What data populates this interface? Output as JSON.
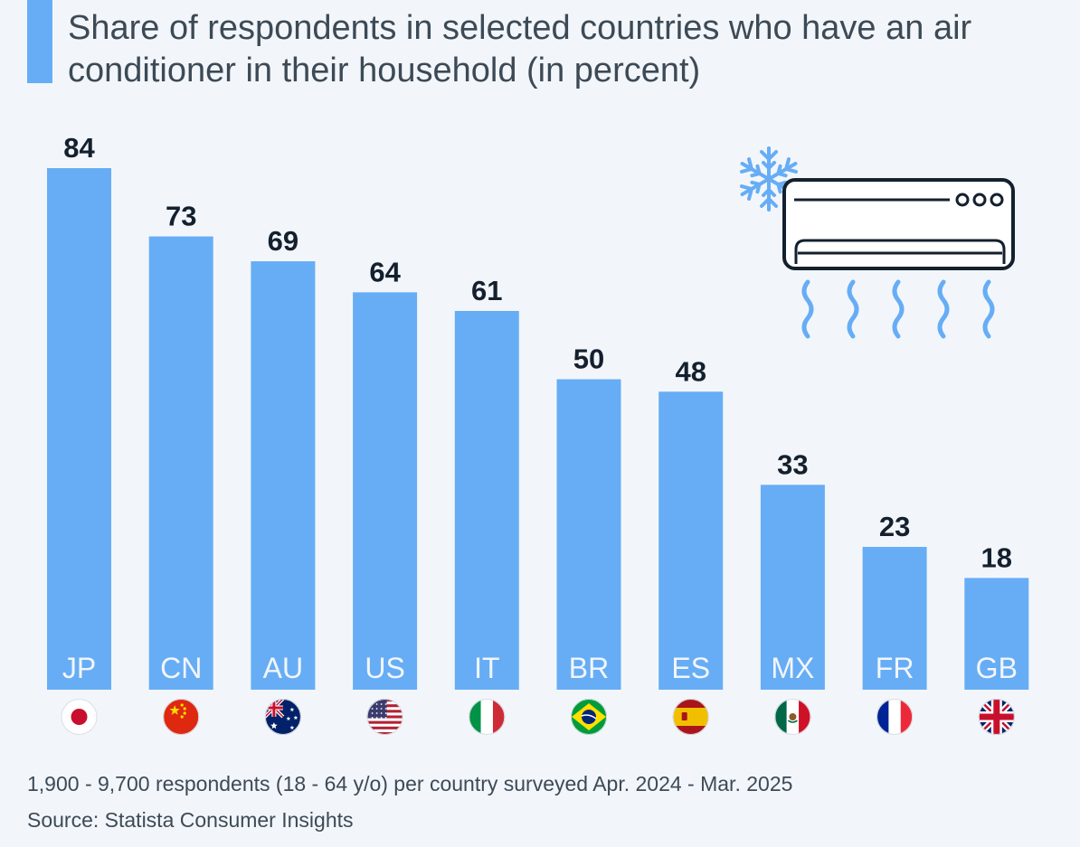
{
  "title": "Share of respondents in selected countries who have an air conditioner in their household (in percent)",
  "footnote": "1,900 - 9,700 respondents (18 - 64 y/o) per country surveyed Apr. 2024 - Mar. 2025",
  "source": "Source: Statista Consumer Insights",
  "colors": {
    "bar": "#67adf5",
    "value_text": "#14202e",
    "category_text": "#f2f6fa",
    "illustration_stroke": "#14202e",
    "illustration_accent": "#67adf5"
  },
  "chart_data": {
    "type": "bar",
    "categories": [
      "JP",
      "CN",
      "AU",
      "US",
      "IT",
      "BR",
      "ES",
      "MX",
      "FR",
      "GB"
    ],
    "values": [
      84,
      73,
      69,
      64,
      61,
      50,
      48,
      33,
      23,
      18
    ],
    "title": "Share of respondents in selected countries who have an air conditioner in their household (in percent)",
    "xlabel": "",
    "ylabel": "",
    "ylim": [
      0,
      84
    ],
    "grid": false,
    "legend": "none",
    "flags": [
      "japan-flag",
      "china-flag",
      "australia-flag",
      "usa-flag",
      "italy-flag",
      "brazil-flag",
      "spain-flag",
      "mexico-flag",
      "france-flag",
      "uk-flag"
    ]
  }
}
